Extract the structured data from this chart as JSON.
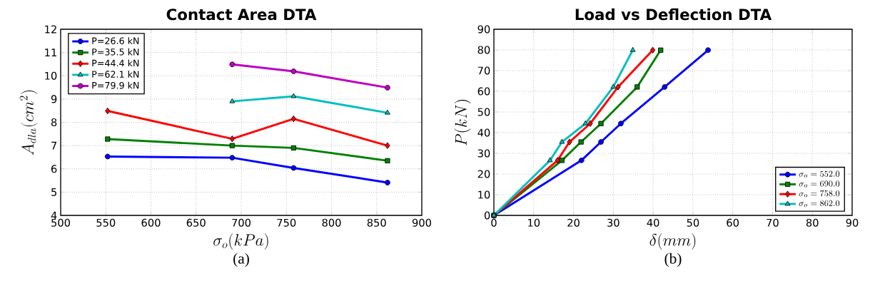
{
  "chart_data": [
    {
      "type": "line",
      "title": "Contact Area DTA",
      "xlabel": "\\sigma_o(kPa)",
      "ylabel": "A_{dla}(cm^2)",
      "x": [
        552,
        690,
        758,
        862
      ],
      "xlim": [
        500,
        900
      ],
      "xticks": [
        500,
        550,
        600,
        650,
        700,
        750,
        800,
        850,
        900
      ],
      "ylim": [
        4,
        12
      ],
      "yticks": [
        4,
        5,
        6,
        7,
        8,
        9,
        10,
        11,
        12
      ],
      "grid": true,
      "legend": "top left",
      "line_style": "solid",
      "annotations": [
        "(a)"
      ],
      "series": [
        {
          "name": "P=26.6 kN",
          "color": "#0000ff",
          "marker": "circle",
          "values": [
            6.53,
            6.48,
            6.04,
            5.41
          ]
        },
        {
          "name": "P=35.5 kN",
          "color": "#008000",
          "marker": "square",
          "values": [
            7.28,
            7.0,
            6.9,
            6.35
          ]
        },
        {
          "name": "P=44.4 kN",
          "color": "#ff0000",
          "marker": "diamond",
          "values": [
            8.49,
            7.29,
            8.15,
            7.0
          ]
        },
        {
          "name": "P=62.1 kN",
          "color": "#00bfbf",
          "marker": "triangle",
          "values": [
            null,
            8.9,
            9.12,
            8.41
          ]
        },
        {
          "name": "P=79.9 kN",
          "color": "#bf00bf",
          "marker": "circle",
          "values": [
            null,
            10.49,
            10.19,
            9.49
          ]
        }
      ]
    },
    {
      "type": "line",
      "title": "Load vs Deflection DTA",
      "xlabel": "\\delta(mm)",
      "ylabel": "P(kN)",
      "xlim": [
        0,
        90
      ],
      "xticks": [
        0,
        10,
        20,
        30,
        40,
        50,
        60,
        70,
        80,
        90
      ],
      "ylim": [
        0,
        90
      ],
      "yticks": [
        0,
        10,
        20,
        30,
        40,
        50,
        60,
        70,
        80,
        90
      ],
      "grid": true,
      "legend": "bottom right",
      "line_style": "solid",
      "annotations": [
        "(b)"
      ],
      "series": [
        {
          "name": "\\sigma_o=552.0",
          "color": "#0000ff",
          "marker": "circle",
          "x": [
            0,
            22.0,
            26.9,
            31.9,
            42.9,
            53.8
          ],
          "values": [
            0,
            26.6,
            35.5,
            44.4,
            62.1,
            79.9
          ]
        },
        {
          "name": "\\sigma_o=690.0",
          "color": "#008000",
          "marker": "square",
          "x": [
            0,
            17.1,
            21.9,
            26.9,
            36.0,
            41.9
          ],
          "values": [
            0,
            26.6,
            35.5,
            44.4,
            62.1,
            79.9
          ]
        },
        {
          "name": "\\sigma_o=758.0",
          "color": "#ff0000",
          "marker": "diamond",
          "x": [
            0,
            16.0,
            19.0,
            24.2,
            31.2,
            39.9
          ],
          "values": [
            0,
            26.6,
            35.5,
            44.4,
            62.1,
            79.9
          ]
        },
        {
          "name": "\\sigma_o=862.0",
          "color": "#00bfbf",
          "marker": "triangle",
          "x": [
            0,
            14.1,
            17.1,
            23.0,
            30.0,
            34.9
          ],
          "values": [
            0,
            26.6,
            35.5,
            44.4,
            62.1,
            79.9
          ]
        }
      ]
    }
  ]
}
